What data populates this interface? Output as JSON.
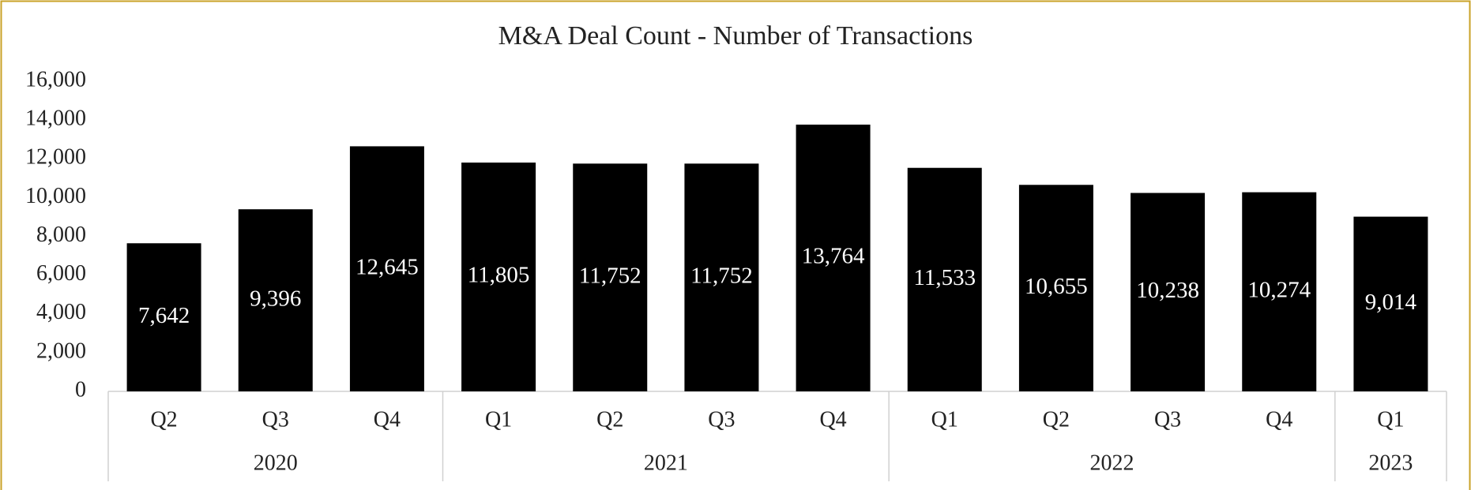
{
  "chart_data": {
    "type": "bar",
    "title": "M&A Deal Count - Number of Transactions",
    "groups": [
      {
        "label": "2020",
        "categories": [
          "Q2",
          "Q3",
          "Q4"
        ]
      },
      {
        "label": "2021",
        "categories": [
          "Q1",
          "Q2",
          "Q3",
          "Q4"
        ]
      },
      {
        "label": "2022",
        "categories": [
          "Q1",
          "Q2",
          "Q3",
          "Q4"
        ]
      },
      {
        "label": "2023",
        "categories": [
          "Q1"
        ]
      }
    ],
    "values": [
      7642,
      9396,
      12645,
      11805,
      11752,
      11752,
      13764,
      11533,
      10655,
      10238,
      10274,
      9014
    ],
    "value_labels": [
      "7,642",
      "9,396",
      "12,645",
      "11,805",
      "11,752",
      "11,752",
      "13,764",
      "11,533",
      "10,655",
      "10,238",
      "10,274",
      "9,014"
    ],
    "color": "#000000",
    "ylim": [
      0,
      16000
    ],
    "yticks": [
      0,
      {
        "value": 2000,
        "label": "2,000"
      },
      {
        "value": 4000,
        "label": "4,000"
      },
      {
        "value": 6000,
        "label": "6,000"
      },
      {
        "value": 8000,
        "label": "8,000"
      },
      {
        "value": 10000,
        "label": "10,000"
      },
      {
        "value": 12000,
        "label": "12,000"
      },
      {
        "value": 14000,
        "label": "14,000"
      },
      {
        "value": 16000,
        "label": "16,000"
      }
    ],
    "grid": false
  }
}
